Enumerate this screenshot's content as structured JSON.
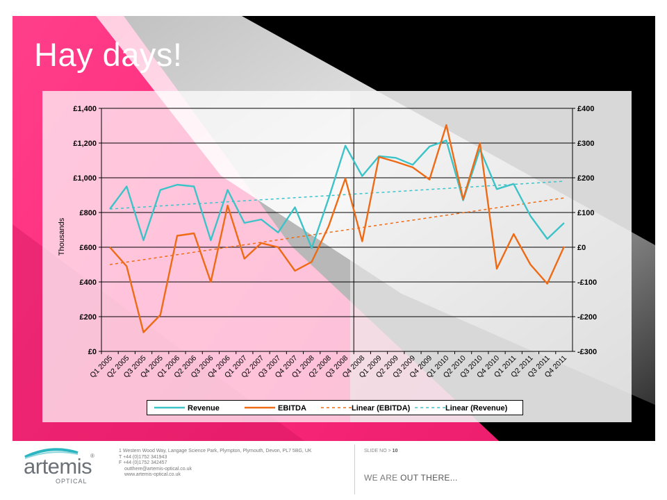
{
  "slide": {
    "title": "Hay days!"
  },
  "chart_data": {
    "type": "line",
    "categories": [
      "Q1 2005",
      "Q2 2005",
      "Q3 2005",
      "Q4 2005",
      "Q1 2006",
      "Q2 2006",
      "Q3 2006",
      "Q4 2006",
      "Q1 2007",
      "Q2 2007",
      "Q3 2007",
      "Q4 2007",
      "Q1 2008",
      "Q2 2008",
      "Q3 2008",
      "Q4 2008",
      "Q1 2009",
      "Q2 2009",
      "Q3 2009",
      "Q4 2009",
      "Q1 2010",
      "Q2 2010",
      "Q3 2010",
      "Q4 2010",
      "Q1 2011",
      "Q2 2011",
      "Q3 2011",
      "Q4 2011"
    ],
    "ylabel": "Thousands",
    "y_left": {
      "range": [
        0,
        1400
      ],
      "ticks": [
        0,
        200,
        400,
        600,
        800,
        1000,
        1200,
        1400
      ],
      "tick_labels": [
        "£0",
        "£200",
        "£400",
        "£600",
        "£800",
        "£1,000",
        "£1,200",
        "£1,400"
      ]
    },
    "y_right": {
      "range": [
        -300,
        400
      ],
      "ticks": [
        -300,
        -200,
        -100,
        0,
        100,
        200,
        300,
        400
      ],
      "tick_labels": [
        "-£300",
        "-£200",
        "-£100",
        "£0",
        "£100",
        "£200",
        "£300",
        "£400"
      ]
    },
    "vertical_marker_after_index": 14,
    "series": [
      {
        "name": "Revenue",
        "axis": "left",
        "color": "#3cc3c8",
        "style": "solid",
        "values": [
          820,
          950,
          640,
          930,
          960,
          950,
          640,
          930,
          740,
          760,
          685,
          830,
          595,
          880,
          1185,
          1010,
          1125,
          1115,
          1075,
          1180,
          1215,
          870,
          1165,
          935,
          965,
          780,
          648,
          740
        ]
      },
      {
        "name": "EBITDA",
        "axis": "right",
        "color": "#ee6a15",
        "style": "solid",
        "values": [
          0,
          -55,
          -245,
          -195,
          33,
          40,
          -100,
          120,
          -33,
          12,
          0,
          -68,
          -42,
          60,
          198,
          17,
          260,
          246,
          230,
          195,
          352,
          138,
          300,
          -62,
          38,
          -50,
          -105,
          2
        ]
      },
      {
        "name": "Linear (EBITDA)",
        "axis": "right",
        "color": "#ee6a15",
        "style": "dashed",
        "trend": [
          -50,
          142
        ]
      },
      {
        "name": "Linear (Revenue)",
        "axis": "left",
        "color": "#3cc3c8",
        "style": "dashed",
        "trend": [
          820,
          980
        ]
      }
    ],
    "legend_position": "bottom"
  },
  "footer": {
    "logo_text": "artemis",
    "logo_sub": "OPTICAL",
    "address_lines": [
      "1 Western Wood Way, Langage Science Park, Plympton, Plymouth, Devon, PL7 5BG, UK",
      "T  +44 (0)1752 341943",
      "F  +44 (0)1752 342457",
      "outthere@artemis-optical.co.uk",
      "www.artemis-optical.co.uk"
    ],
    "slide_no_label": "SLIDE NO >",
    "slide_no": "10",
    "tagline_a": "WE ARE",
    "tagline_b": "OUT THERE..."
  }
}
